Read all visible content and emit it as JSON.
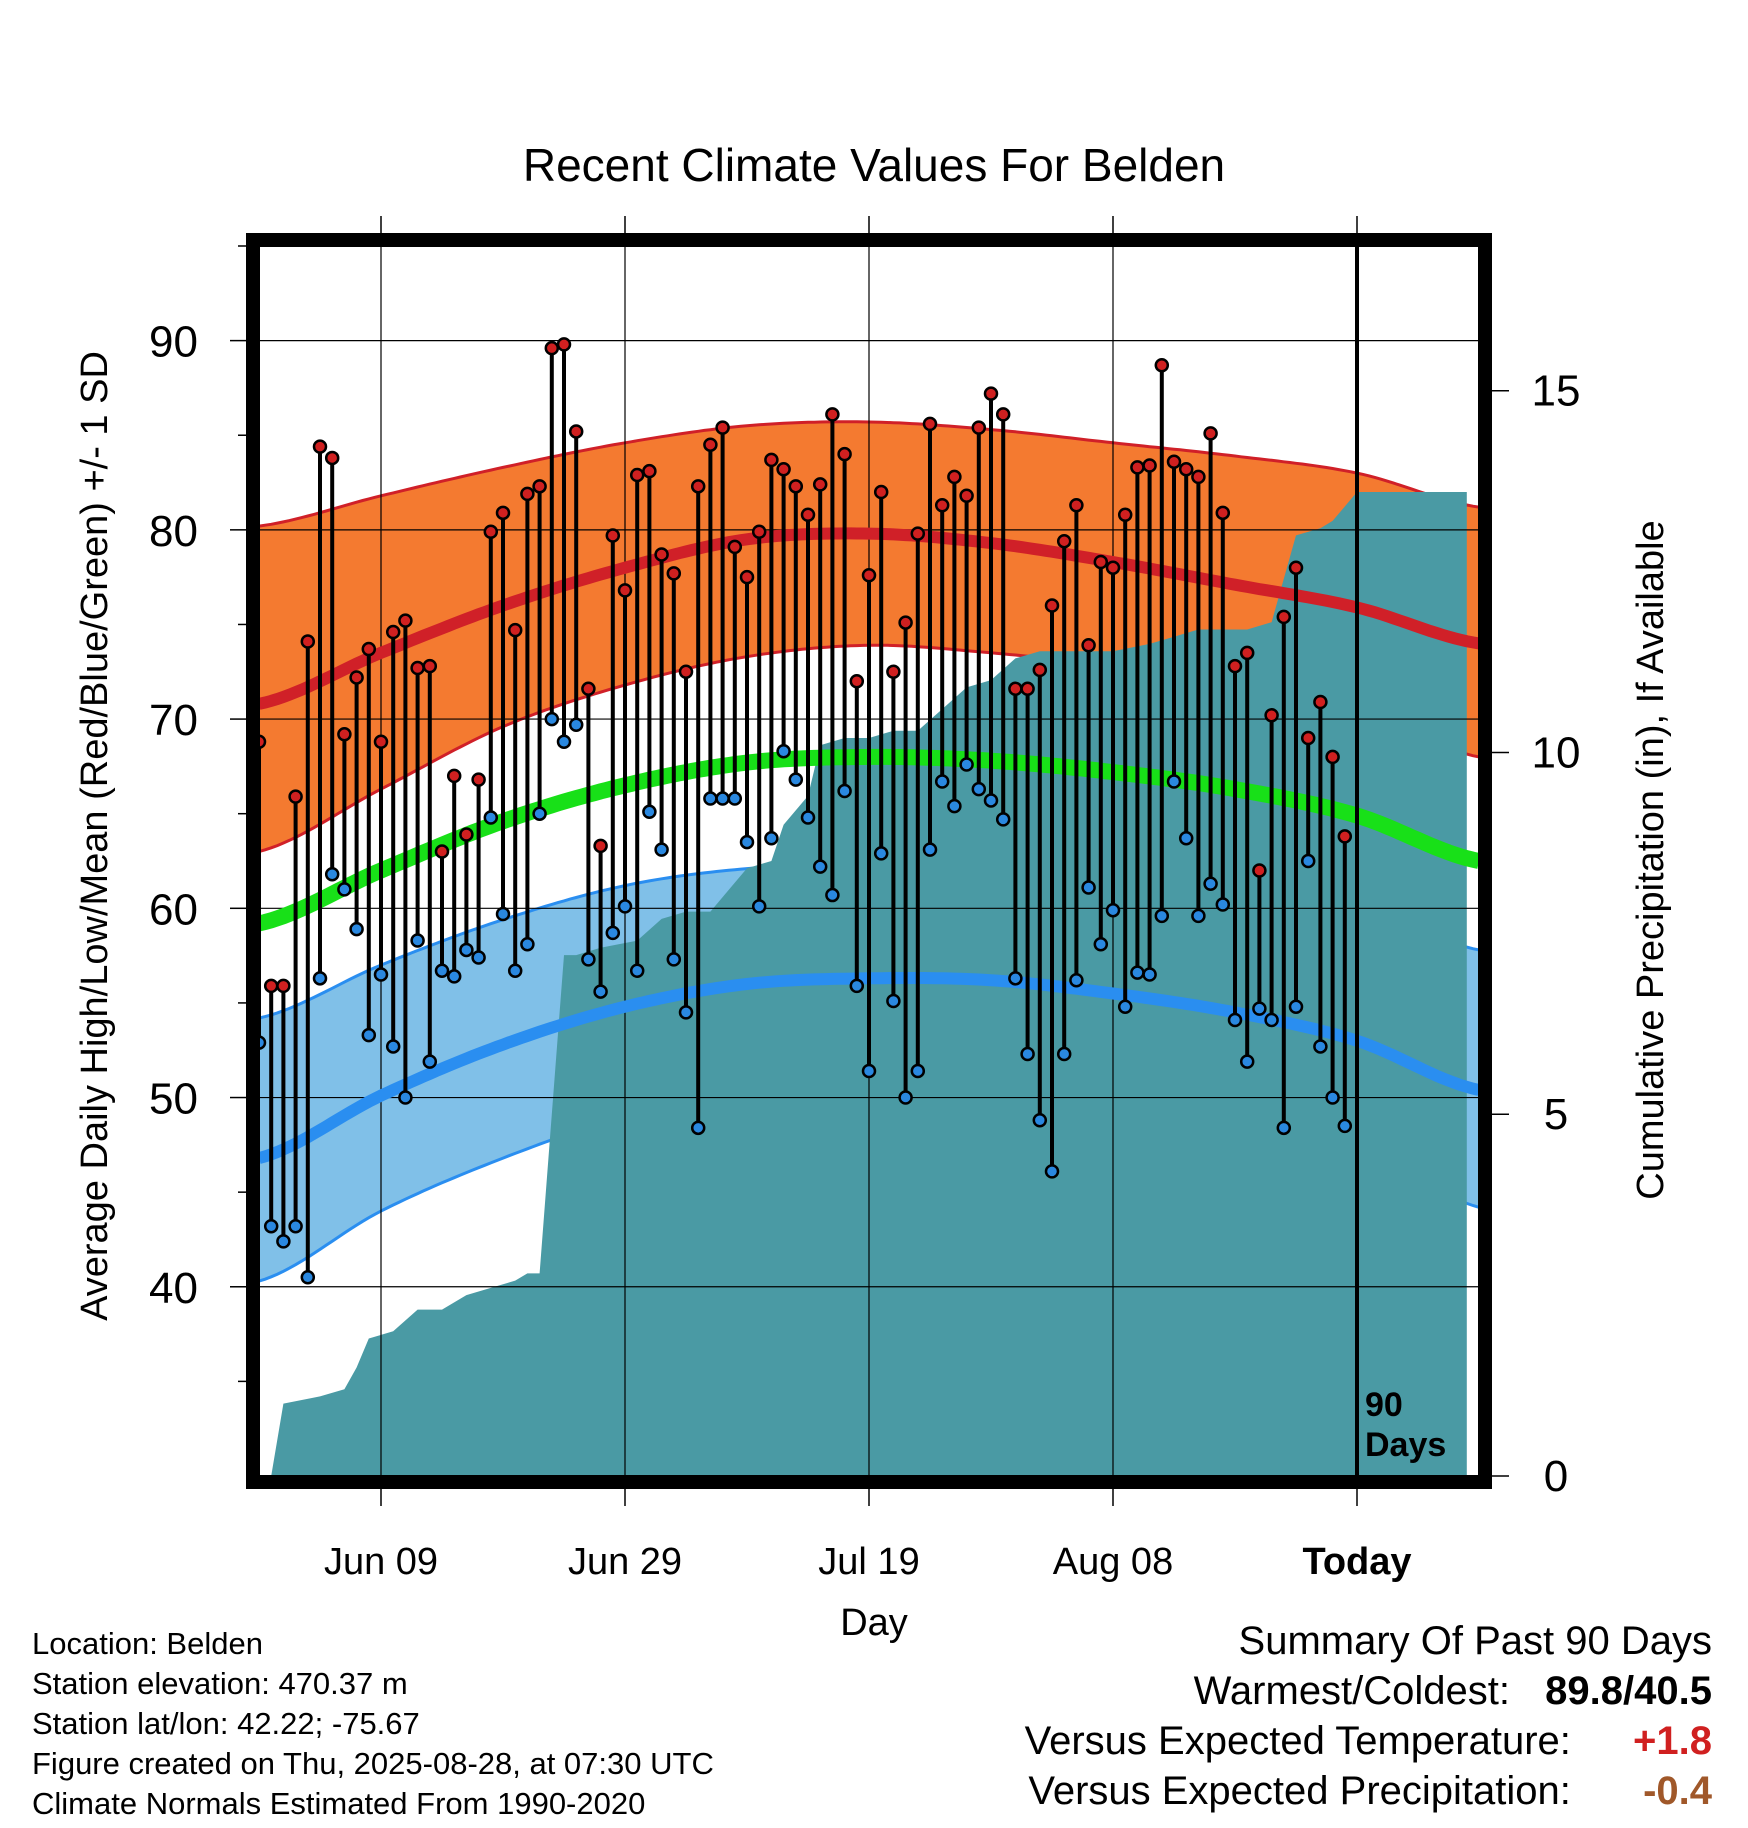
{
  "chart_data": {
    "type": "line",
    "title": "Recent Climate Values For Belden",
    "xlabel": "Day",
    "ylabel": "Average Daily High/Low/Mean (Red/Blue/Green) +/- 1 SD",
    "ylabel_right": "Cumulative Precipitation (in), If Available",
    "ylim": [
      30,
      95
    ],
    "ylim_right": [
      0,
      17
    ],
    "yticks": [
      40,
      50,
      60,
      70,
      80,
      90
    ],
    "yticks_right": [
      0,
      5,
      10,
      15
    ],
    "xticks": [
      "Jun 09",
      "Jun 29",
      "Jul 19",
      "Aug 08",
      "Today"
    ],
    "x_range_days": [
      -90,
      10
    ],
    "xtick_days": [
      -80,
      -60,
      -40,
      -20,
      0
    ],
    "grid": true,
    "today_marker": {
      "label_line1": "90",
      "label_line2": "Days"
    },
    "colors": {
      "high_band": "#f47a30",
      "high_line": "#d02028",
      "low_band": "#80c0e8",
      "low_line": "#2a8ef0",
      "mean_line": "#18e018",
      "precip": "#4a9aa4",
      "high_dot": "#d02020",
      "low_dot": "#2a88e0"
    },
    "normals": {
      "day": [
        -90,
        -80,
        -70,
        -60,
        -50,
        -40,
        -30,
        -20,
        -10,
        0,
        10
      ],
      "high_mean": [
        70.8,
        73.5,
        76.0,
        78.0,
        79.5,
        79.8,
        79.3,
        78.3,
        77.1,
        75.9,
        74.0
      ],
      "high_upper": [
        80.2,
        81.8,
        83.3,
        84.6,
        85.5,
        85.7,
        85.3,
        84.6,
        83.9,
        83.0,
        81.2
      ],
      "high_lower": [
        63.0,
        66.3,
        69.6,
        71.8,
        73.3,
        73.9,
        73.5,
        72.8,
        71.7,
        70.4,
        68.0
      ],
      "mean": [
        59.2,
        62.0,
        64.6,
        66.5,
        67.7,
        68.0,
        67.8,
        67.2,
        66.3,
        64.9,
        62.5
      ],
      "low_mean": [
        46.8,
        50.1,
        52.8,
        54.8,
        56.0,
        56.3,
        56.2,
        55.5,
        54.5,
        53.0,
        50.4
      ],
      "low_upper": [
        54.2,
        57.0,
        59.4,
        61.2,
        62.1,
        62.3,
        62.2,
        61.9,
        61.5,
        60.2,
        57.8
      ],
      "low_lower": [
        40.3,
        44.0,
        46.8,
        49.0,
        50.3,
        50.8,
        50.7,
        50.2,
        49.2,
        47.5,
        44.2
      ]
    },
    "series": [
      {
        "name": "High",
        "values": [
          68.8,
          55.9,
          55.9,
          65.9,
          74.1,
          84.4,
          83.8,
          69.2,
          72.2,
          73.7,
          68.8,
          74.6,
          75.2,
          72.7,
          72.8,
          63.0,
          67.0,
          63.9,
          66.8,
          79.9,
          80.9,
          74.7,
          81.9,
          82.3,
          89.6,
          89.8,
          85.2,
          71.6,
          63.3,
          79.7,
          76.8,
          82.9,
          83.1,
          78.7,
          77.7,
          72.5,
          82.3,
          84.5,
          85.4,
          79.1,
          77.5,
          79.9,
          83.7,
          83.2,
          82.3,
          80.8,
          82.4,
          86.1,
          84.0,
          72.0,
          77.6,
          82.0,
          72.5,
          75.1,
          79.8,
          85.6,
          81.3,
          82.8,
          81.8,
          85.4,
          87.2,
          86.1,
          71.6,
          71.6,
          72.6,
          76.0,
          79.4,
          81.3,
          73.9,
          78.3,
          78.0,
          80.8,
          83.3,
          83.4,
          88.7,
          83.6,
          83.2,
          82.8,
          85.1,
          80.9,
          72.8,
          73.5,
          62.0,
          70.2,
          75.4,
          78.0,
          69.0,
          70.9,
          68.0,
          63.8
        ]
      },
      {
        "name": "Low",
        "values": [
          52.9,
          43.2,
          42.4,
          43.2,
          40.5,
          56.3,
          61.8,
          61.0,
          58.9,
          53.3,
          56.5,
          52.7,
          50.0,
          58.3,
          51.9,
          56.7,
          56.4,
          57.8,
          57.4,
          64.8,
          59.7,
          56.7,
          58.1,
          65.0,
          70.0,
          68.8,
          69.7,
          57.3,
          55.6,
          58.7,
          60.1,
          56.7,
          65.1,
          63.1,
          57.3,
          54.5,
          48.4,
          65.8,
          65.8,
          65.8,
          63.5,
          60.1,
          63.7,
          68.3,
          66.8,
          64.8,
          62.2,
          60.7,
          66.2,
          55.9,
          51.4,
          62.9,
          55.1,
          50.0,
          51.4,
          63.1,
          66.7,
          65.4,
          67.6,
          66.3,
          65.7,
          64.7,
          56.3,
          52.3,
          48.8,
          46.1,
          52.3,
          56.2,
          61.1,
          58.1,
          59.9,
          54.8,
          56.6,
          56.5,
          59.6,
          66.7,
          63.7,
          59.6,
          61.3,
          60.2,
          54.1,
          51.9,
          54.7,
          54.1,
          48.4,
          54.8,
          62.5,
          52.7,
          50.0,
          48.5
        ]
      }
    ],
    "precip": {
      "day": [
        -90,
        -89,
        -88,
        -85,
        -83,
        -82,
        -81,
        -79,
        -77,
        -75,
        -73,
        -71,
        -69,
        -68,
        -67,
        -65,
        -64,
        -62,
        -59,
        -57,
        -55,
        -53,
        -50,
        -48,
        -47,
        -45,
        -44,
        -42,
        -40,
        -38,
        -36,
        -34,
        -32,
        -30,
        -28,
        -26,
        -20,
        -17,
        -15,
        -13,
        -9,
        -7,
        -5,
        -3,
        -2,
        -1,
        0,
        1,
        9
      ],
      "value": [
        0.0,
        0.0,
        1.0,
        1.1,
        1.2,
        1.5,
        1.9,
        2.0,
        2.3,
        2.3,
        2.5,
        2.6,
        2.7,
        2.8,
        2.8,
        7.2,
        7.2,
        7.3,
        7.4,
        7.7,
        7.8,
        7.8,
        8.4,
        8.5,
        9.0,
        9.4,
        10.1,
        10.2,
        10.2,
        10.3,
        10.3,
        10.6,
        10.9,
        11.0,
        11.3,
        11.4,
        11.4,
        11.5,
        11.6,
        11.7,
        11.7,
        11.8,
        13.0,
        13.1,
        13.2,
        13.4,
        13.6,
        13.6,
        13.6
      ]
    }
  },
  "meta": {
    "location": "Location: Belden",
    "elevation": "Station elevation: 470.37 m",
    "latlon": "Station lat/lon: 42.22; -75.67",
    "created": "Figure created on Thu, 2025-08-28, at 07:30 UTC",
    "normals": "Climate Normals Estimated From 1990-2020"
  },
  "summary": {
    "title": "Summary Of Past 90 Days",
    "warmest_coldest_label": "Warmest/Coldest:",
    "warmest": "89.8",
    "coldest": "40.5",
    "temp_label": "Versus Expected Temperature:",
    "temp_value": "+1.8",
    "temp_color": "#d02020",
    "precip_label": "Versus Expected Precipitation:",
    "precip_value": "-0.4",
    "precip_color": "#a0582a"
  }
}
